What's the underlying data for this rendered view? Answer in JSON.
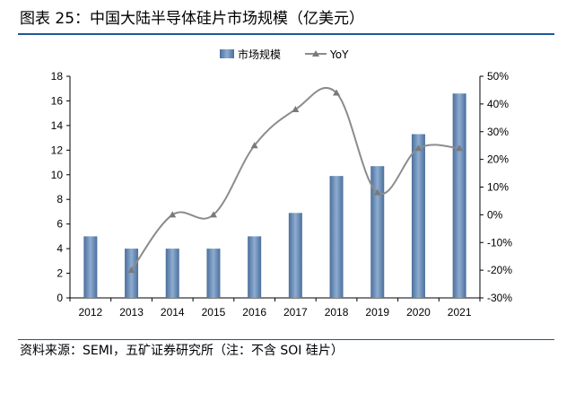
{
  "title": "图表 25：中国大陆半导体硅片市场规模（亿美元）",
  "source": "资料来源：SEMI，五矿证券研究所（注：不含 SOI 硅片）",
  "colors": {
    "bar": "#4a6f9c",
    "bar_light": "#8eacd0",
    "line": "#8c8c8c",
    "rule": "#1a5a96"
  },
  "chart_data": {
    "type": "bar",
    "categories": [
      "2012",
      "2013",
      "2014",
      "2015",
      "2016",
      "2017",
      "2018",
      "2019",
      "2020",
      "2021"
    ],
    "series": [
      {
        "name": "市场规模",
        "type": "bar",
        "axis": "left",
        "values": [
          5.0,
          4.0,
          4.0,
          4.0,
          5.0,
          6.9,
          9.9,
          10.7,
          13.3,
          16.6
        ]
      },
      {
        "name": "YoY",
        "type": "line",
        "axis": "right",
        "values": [
          null,
          -20,
          0,
          0,
          25,
          38,
          44,
          8,
          24,
          24
        ]
      }
    ],
    "left_axis": {
      "min": 0,
      "max": 18,
      "step": 2,
      "ticks": [
        "0",
        "2",
        "4",
        "6",
        "8",
        "10",
        "12",
        "14",
        "16",
        "18"
      ]
    },
    "right_axis": {
      "min": -30,
      "max": 50,
      "step": 10,
      "ticks": [
        "-30%",
        "-20%",
        "-10%",
        "0%",
        "10%",
        "20%",
        "30%",
        "40%",
        "50%"
      ]
    },
    "legend": [
      "市场规模",
      "YoY"
    ],
    "legend_position": "top-center",
    "grid": false
  }
}
